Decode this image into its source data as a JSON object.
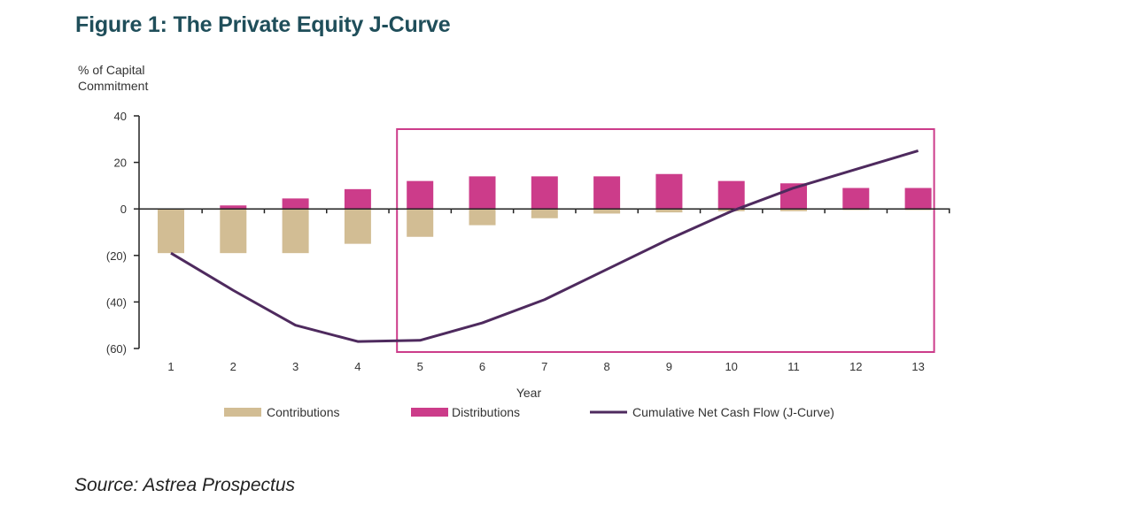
{
  "figure_title": "Figure 1: The Private Equity J-Curve",
  "source": "Source: Astrea Prospectus",
  "colors": {
    "contributions": "#d2bd94",
    "distributions": "#cc3c8a",
    "jcurve": "#4e2a5e",
    "highlight_box": "#cc3c8a",
    "title": "#1f4e5a"
  },
  "chart_data": {
    "type": "bar",
    "title": "",
    "ylabel_lines": [
      "% of Capital",
      "Commitment"
    ],
    "xlabel": "Year",
    "ylim": [
      -60,
      40
    ],
    "yticks": [
      40,
      20,
      0,
      -20,
      -40,
      -60
    ],
    "ytick_labels": [
      "40",
      "20",
      "0",
      "(20)",
      "(40)",
      "(60)"
    ],
    "categories": [
      "1",
      "2",
      "3",
      "4",
      "5",
      "6",
      "7",
      "8",
      "9",
      "10",
      "11",
      "12",
      "13"
    ],
    "series": [
      {
        "name": "Contributions",
        "kind": "bar",
        "values": [
          -19,
          -19,
          -19,
          -15,
          -12,
          -7,
          -4,
          -2,
          -1.5,
          -1,
          -1,
          -0.5,
          -0.5
        ]
      },
      {
        "name": "Distributions",
        "kind": "bar",
        "values": [
          0,
          1.5,
          4.5,
          8.5,
          12,
          14,
          14,
          14,
          15,
          12,
          11,
          9,
          9
        ]
      },
      {
        "name": "Cumulative Net Cash Flow (J-Curve)",
        "kind": "line",
        "values": [
          -19,
          -35,
          -50,
          -57,
          -56.5,
          -49,
          -39,
          -26,
          -13,
          -1,
          9,
          17,
          25
        ]
      }
    ],
    "highlight_range": [
      "5",
      "13"
    ],
    "legend_position": "bottom",
    "grid": false
  }
}
